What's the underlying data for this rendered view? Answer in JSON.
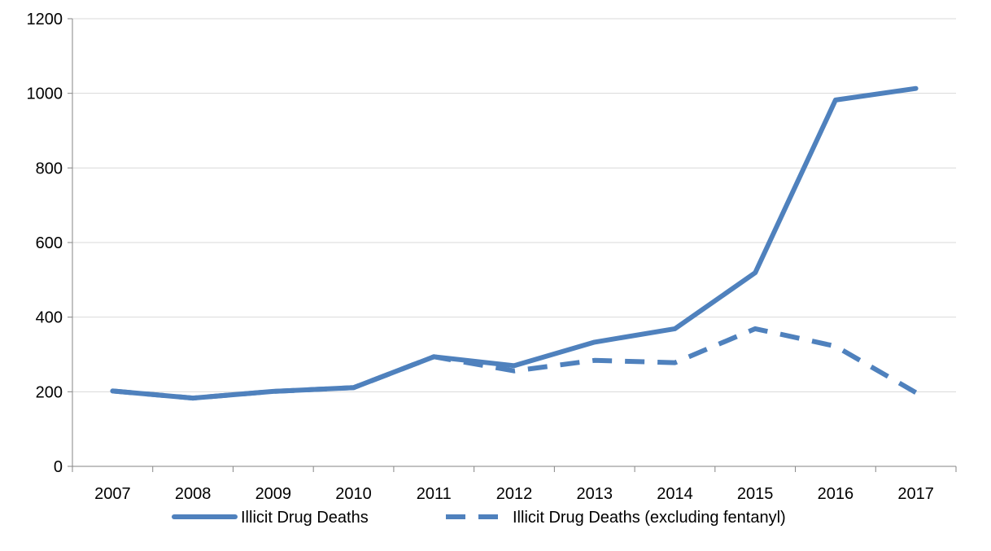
{
  "chart_data": {
    "type": "line",
    "title": "",
    "xlabel": "",
    "ylabel": "",
    "x": [
      "2007",
      "2008",
      "2009",
      "2010",
      "2011",
      "2012",
      "2013",
      "2014",
      "2015",
      "2016",
      "2017"
    ],
    "ylim": [
      0,
      1200
    ],
    "yticks": [
      0,
      200,
      400,
      600,
      800,
      1000,
      1200
    ],
    "grid": "horizontal",
    "legend_position": "bottom",
    "series": [
      {
        "name": "Illicit Drug Deaths",
        "style": "solid",
        "color": "#4F81BD",
        "values": [
          202,
          183,
          201,
          211,
          294,
          270,
          333,
          369,
          519,
          982,
          1013
        ]
      },
      {
        "name": "Illicit Drug Deaths (excluding fentanyl)",
        "style": "dashed",
        "color": "#4F81BD",
        "values": [
          202,
          183,
          201,
          211,
          294,
          256,
          284,
          278,
          369,
          322,
          198
        ]
      }
    ]
  }
}
